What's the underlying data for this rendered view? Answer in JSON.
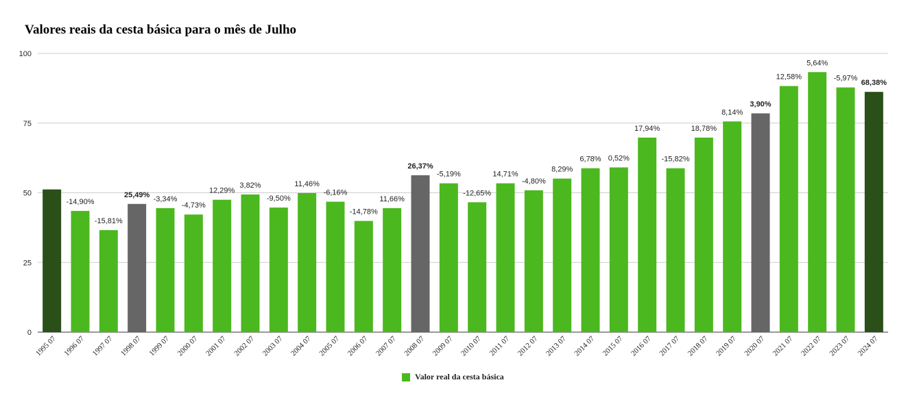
{
  "chart_data": {
    "type": "bar",
    "title": "Valores reais da cesta básica para o mês de Julho",
    "xlabel": "",
    "ylabel": "",
    "ylim": [
      0,
      100
    ],
    "yticks": [
      0,
      25,
      50,
      75,
      100
    ],
    "grid": true,
    "legend_position": "bottom",
    "categories": [
      "1995 07",
      "1996 07",
      "1997 07",
      "1998 07",
      "1999 07",
      "2000 07",
      "2001 07",
      "2002 07",
      "2003 07",
      "2004 07",
      "2005 07",
      "2006 07",
      "2007 07",
      "2008 07",
      "2009 07",
      "2010 07",
      "2011 07",
      "2012 07",
      "2013 07",
      "2014 07",
      "2015 07",
      "2016 07",
      "2017 07",
      "2018 07",
      "2019 07",
      "2020 07",
      "2021 07",
      "2022 07",
      "2023 07",
      "2024 07"
    ],
    "series": [
      {
        "name": "Valor real da cesta básica",
        "values": [
          51.2,
          43.5,
          36.6,
          46.0,
          44.5,
          42.2,
          47.5,
          49.4,
          44.7,
          49.9,
          46.8,
          39.9,
          44.5,
          56.3,
          53.4,
          46.6,
          53.4,
          50.9,
          55.1,
          58.8,
          59.1,
          69.8,
          58.8,
          69.8,
          75.6,
          78.5,
          88.3,
          93.3,
          87.8,
          86.2
        ],
        "labels": [
          "",
          "-14,90%",
          "-15,81%",
          "25,49%",
          "-3,34%",
          "-4,73%",
          "12,29%",
          "3,82%",
          "-9,50%",
          "11,46%",
          "-6,16%",
          "-14,78%",
          "11,66%",
          "26,37%",
          "-5,19%",
          "-12,65%",
          "14,71%",
          "-4,80%",
          "8,29%",
          "6,78%",
          "0,52%",
          "17,94%",
          "-15,82%",
          "18,78%",
          "8,14%",
          "3,90%",
          "12,58%",
          "5,64%",
          "-5,97%",
          "68,38%"
        ],
        "bold_labels": [
          3,
          13,
          25,
          29
        ],
        "highlight_dark": [
          0,
          29
        ],
        "highlight_gray": [
          3,
          13,
          25
        ]
      }
    ],
    "colors": {
      "bar": "#4cb81f",
      "bar_dark": "#2a4f18",
      "bar_gray": "#666666",
      "grid": "#cccccc",
      "axis": "#333333"
    }
  }
}
